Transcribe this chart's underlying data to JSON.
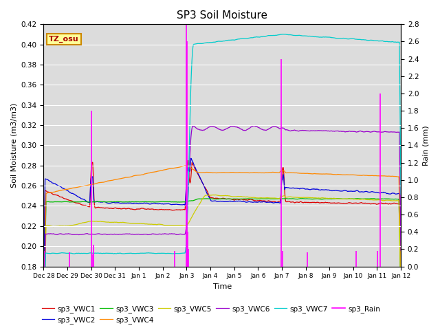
{
  "title": "SP3 Soil Moisture",
  "ylabel_left": "Soil Moisture (m3/m3)",
  "ylabel_right": "Rain (mm)",
  "xlabel": "Time",
  "ylim_left": [
    0.18,
    0.42
  ],
  "ylim_right": [
    0.0,
    2.8
  ],
  "fig_bg": "#ffffff",
  "plot_bg": "#dcdcdc",
  "annotation_text": "TZ_osu",
  "annotation_bg": "#ffff99",
  "annotation_border": "#cc8800",
  "colors": {
    "sp3_VWC1": "#dd0000",
    "sp3_VWC2": "#0000dd",
    "sp3_VWC3": "#00bb00",
    "sp3_VWC4": "#ff8800",
    "sp3_VWC5": "#cccc00",
    "sp3_VWC6": "#9900cc",
    "sp3_VWC7": "#00cccc",
    "sp3_Rain": "#ff00ff"
  },
  "yticks_left": [
    0.18,
    0.2,
    0.22,
    0.24,
    0.26,
    0.28,
    0.3,
    0.32,
    0.34,
    0.36,
    0.38,
    0.4,
    0.42
  ],
  "yticks_right": [
    0.0,
    0.2,
    0.4,
    0.6,
    0.8,
    1.0,
    1.2,
    1.4,
    1.6,
    1.8,
    2.0,
    2.2,
    2.4,
    2.6,
    2.8
  ],
  "tick_labels": [
    "Dec 28",
    "Dec 29",
    "Dec 30",
    "Dec 31",
    "Jan 1",
    "Jan 2",
    "Jan 3",
    "Jan 4",
    "Jan 5",
    "Jan 6",
    "Jan 7",
    "Jan 8",
    "Jan 9",
    "Jan 10",
    "Jan 11",
    "Jan 12"
  ],
  "legend_labels": [
    "sp3_VWC1",
    "sp3_VWC2",
    "sp3_VWC3",
    "sp3_VWC4",
    "sp3_VWC5",
    "sp3_VWC6",
    "sp3_VWC7",
    "sp3_Rain"
  ]
}
